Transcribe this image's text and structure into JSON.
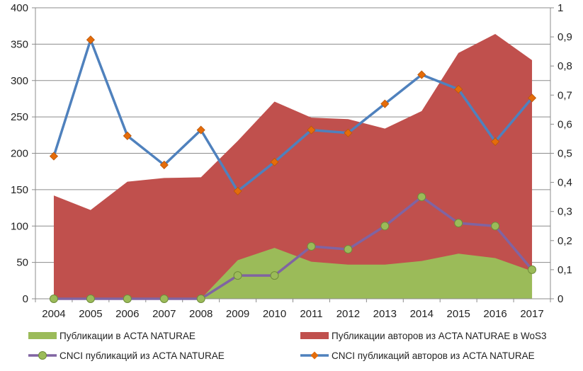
{
  "chart_data": {
    "type": "area",
    "categories": [
      "2004",
      "2005",
      "2006",
      "2007",
      "2008",
      "2009",
      "2010",
      "2011",
      "2012",
      "2013",
      "2014",
      "2015",
      "2016",
      "2017"
    ],
    "y_left": {
      "range": [
        0,
        400
      ],
      "ticks": [
        "0",
        "50",
        "100",
        "150",
        "200",
        "250",
        "300",
        "350",
        "400"
      ]
    },
    "y_right": {
      "range": [
        0,
        1
      ],
      "ticks": [
        "0",
        "0,1",
        "0,2",
        "0,3",
        "0,4",
        "0,5",
        "0,6",
        "0,7",
        "0,8",
        "0,9",
        "1"
      ]
    },
    "grid": true,
    "legend_position": "bottom",
    "series": [
      {
        "name": "Публикации авторов из ACTA NATURAE в WoS3",
        "kind": "area",
        "axis": "left",
        "color": "#c0504d",
        "values": [
          142,
          122,
          161,
          166,
          167,
          217,
          271,
          249,
          247,
          234,
          258,
          338,
          364,
          328
        ]
      },
      {
        "name": "Публикации в ACTA NATURAE",
        "kind": "area",
        "axis": "left",
        "color": "#9bbb59",
        "values": [
          0,
          0,
          0,
          0,
          0,
          53,
          70,
          51,
          47,
          47,
          52,
          62,
          56,
          38
        ]
      },
      {
        "name": "CNCI публикаций авторов из ACTA NATURAE",
        "kind": "line",
        "axis": "right",
        "color": "#4f81bd",
        "marker": "diamond",
        "marker_color": "#e46c0a",
        "values": [
          0.49,
          0.89,
          0.56,
          0.46,
          0.58,
          0.37,
          0.47,
          0.58,
          0.57,
          0.67,
          0.77,
          0.72,
          0.54,
          0.69
        ]
      },
      {
        "name": "CNCI публикаций из ACTA NATURAE",
        "kind": "line",
        "axis": "right",
        "color": "#8064a2",
        "marker": "circle",
        "marker_color": "#9bbb59",
        "values": [
          0,
          0,
          0,
          0,
          0,
          0.08,
          0.08,
          0.18,
          0.17,
          0.25,
          0.35,
          0.26,
          0.25,
          0.1
        ]
      }
    ]
  }
}
